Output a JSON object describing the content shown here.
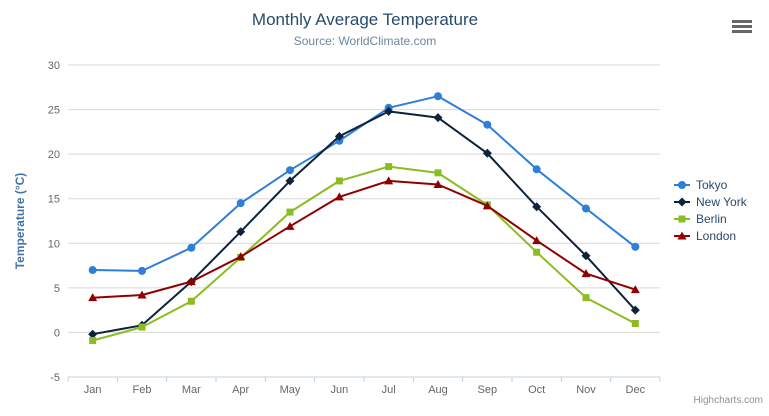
{
  "chart_data": {
    "type": "line",
    "title": "Monthly Average Temperature",
    "subtitle": "Source: WorldClimate.com",
    "categories": [
      "Jan",
      "Feb",
      "Mar",
      "Apr",
      "May",
      "Jun",
      "Jul",
      "Aug",
      "Sep",
      "Oct",
      "Nov",
      "Dec"
    ],
    "series": [
      {
        "name": "Tokyo",
        "color": "#2f7ed8",
        "marker": "circle",
        "values": [
          7.0,
          6.9,
          9.5,
          14.5,
          18.2,
          21.5,
          25.2,
          26.5,
          23.3,
          18.3,
          13.9,
          9.6
        ]
      },
      {
        "name": "New York",
        "color": "#0d233a",
        "marker": "diamond",
        "values": [
          -0.2,
          0.8,
          5.7,
          11.3,
          17.0,
          22.0,
          24.8,
          24.1,
          20.1,
          14.1,
          8.6,
          2.5
        ]
      },
      {
        "name": "Berlin",
        "color": "#8bbc21",
        "marker": "square",
        "values": [
          -0.9,
          0.6,
          3.5,
          8.4,
          13.5,
          17.0,
          18.6,
          17.9,
          14.3,
          9.0,
          3.9,
          1.0
        ]
      },
      {
        "name": "London",
        "color": "#910000",
        "marker": "triangle",
        "values": [
          3.9,
          4.2,
          5.7,
          8.5,
          11.9,
          15.2,
          17.0,
          16.6,
          14.2,
          10.3,
          6.6,
          4.8
        ]
      }
    ],
    "xlabel": "",
    "ylabel": "Temperature (°C)",
    "ylim": [
      -5,
      30
    ],
    "ytick_step": 5,
    "grid": true,
    "legend_position": "right"
  },
  "credits": {
    "label": "Highcharts.com"
  },
  "colors": {
    "title": "#274b6d",
    "subtitle": "#6d869f",
    "axis_title": "#4572a7",
    "tick_label": "#666666",
    "grid_line": "#d8d8d8",
    "axis_line": "#c0d0e0",
    "legend_label": "#274b6d",
    "credits": "#909090"
  }
}
